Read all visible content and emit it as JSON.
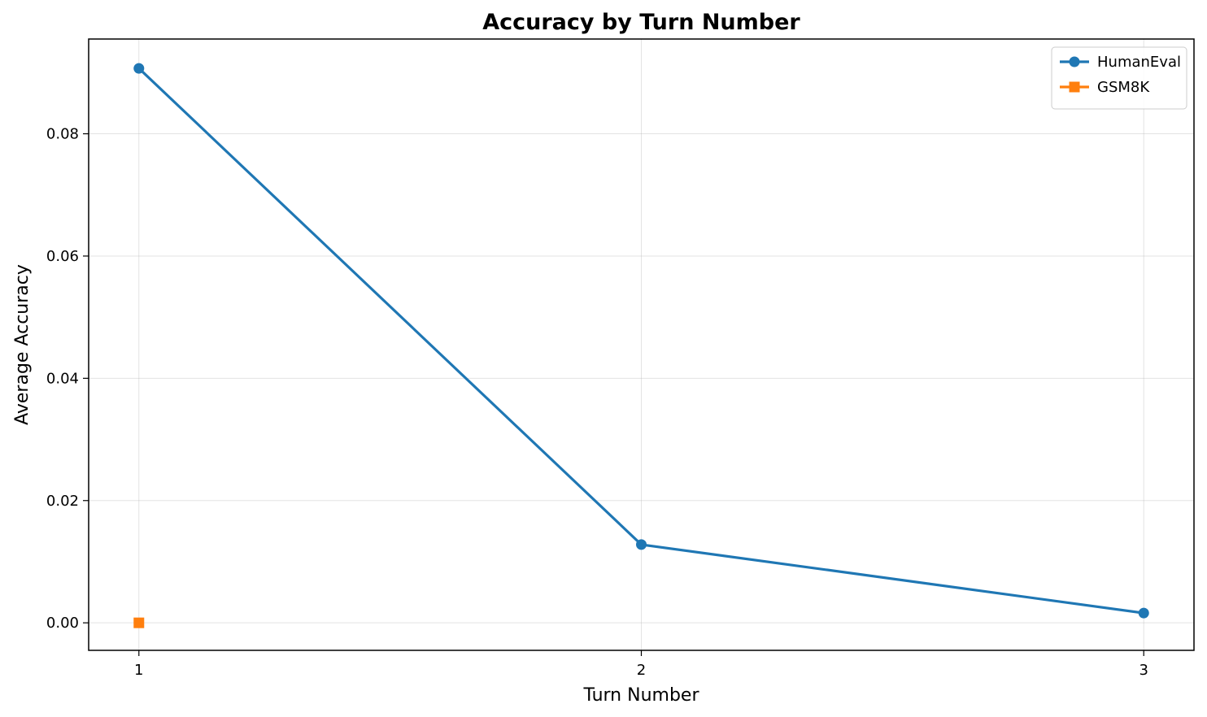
{
  "chart_data": {
    "type": "line",
    "title": "Accuracy by Turn Number",
    "xlabel": "Turn Number",
    "ylabel": "Average Accuracy",
    "x_ticks": [
      1,
      2,
      3
    ],
    "y_ticks": [
      0.0,
      0.02,
      0.04,
      0.06,
      0.08
    ],
    "y_tick_labels": [
      "0.00",
      "0.02",
      "0.04",
      "0.06",
      "0.08"
    ],
    "xlim": [
      0.9,
      3.1
    ],
    "ylim": [
      -0.0045,
      0.0955
    ],
    "grid": true,
    "legend_position": "top-right",
    "series": [
      {
        "name": "HumanEval",
        "color": "#1f77b4",
        "marker": "circle",
        "x": [
          1,
          2,
          3
        ],
        "y": [
          0.0907,
          0.0128,
          0.0016
        ]
      },
      {
        "name": "GSM8K",
        "color": "#ff7f0e",
        "marker": "square",
        "x": [
          1
        ],
        "y": [
          0.0
        ]
      }
    ]
  }
}
